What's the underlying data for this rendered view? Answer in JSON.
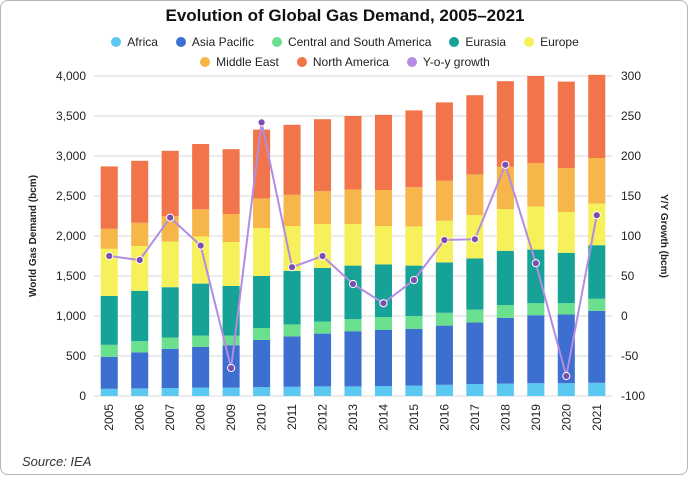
{
  "source": "Source: IEA",
  "chart_data": {
    "type": "bar",
    "stacked": true,
    "title": "Evolution of Global Gas Demand, 2005–2021",
    "xlabel": "",
    "ylabel": "World Gas Demand (bcm)",
    "y2label": "Y/Y Growth (bcm)",
    "ylim": [
      0,
      4000
    ],
    "y2lim": [
      -100,
      300
    ],
    "yticks": [
      "0",
      "500",
      "1,000",
      "1,500",
      "2,000",
      "2,500",
      "3,000",
      "3,500",
      "4,000"
    ],
    "y2ticks": [
      "-100",
      "-50",
      "0",
      "50",
      "100",
      "150",
      "200",
      "250",
      "300"
    ],
    "grid": true,
    "legend": [
      {
        "name": "Africa",
        "color": "#5ac8f0"
      },
      {
        "name": "Asia Pacific",
        "color": "#3d6fd0"
      },
      {
        "name": "Central and South America",
        "color": "#6ae08e"
      },
      {
        "name": "Eurasia",
        "color": "#16a297"
      },
      {
        "name": "Europe",
        "color": "#f6f05a"
      },
      {
        "name": "Middle East",
        "color": "#f6b64a"
      },
      {
        "name": "North America",
        "color": "#f2744a"
      },
      {
        "name": "Y-o-y growth",
        "color": "#b48ce2"
      }
    ],
    "categories": [
      "2005",
      "2006",
      "2007",
      "2008",
      "2009",
      "2010",
      "2011",
      "2012",
      "2013",
      "2014",
      "2015",
      "2016",
      "2017",
      "2018",
      "2019",
      "2020",
      "2021"
    ],
    "series": [
      {
        "name": "Africa",
        "color": "#5ac8f0",
        "values": [
          90,
          95,
          100,
          105,
          105,
          110,
          115,
          120,
          120,
          125,
          130,
          140,
          150,
          155,
          160,
          160,
          165
        ]
      },
      {
        "name": "Asia Pacific",
        "color": "#3d6fd0",
        "values": [
          400,
          450,
          490,
          510,
          530,
          590,
          630,
          660,
          690,
          700,
          710,
          740,
          770,
          820,
          850,
          860,
          900
        ]
      },
      {
        "name": "Central and South America",
        "color": "#6ae08e",
        "values": [
          150,
          140,
          140,
          140,
          120,
          150,
          150,
          150,
          150,
          160,
          160,
          160,
          160,
          160,
          150,
          140,
          150
        ]
      },
      {
        "name": "Eurasia",
        "color": "#16a297",
        "values": [
          610,
          630,
          630,
          650,
          620,
          650,
          670,
          670,
          670,
          660,
          630,
          630,
          640,
          680,
          670,
          630,
          670
        ]
      },
      {
        "name": "Europe",
        "color": "#f6f05a",
        "values": [
          590,
          560,
          570,
          590,
          550,
          600,
          560,
          550,
          520,
          480,
          490,
          520,
          540,
          520,
          540,
          510,
          520
        ]
      },
      {
        "name": "Middle East",
        "color": "#f6b64a",
        "values": [
          250,
          290,
          320,
          340,
          350,
          370,
          390,
          410,
          430,
          450,
          490,
          500,
          510,
          530,
          540,
          550,
          570
        ]
      },
      {
        "name": "North America",
        "color": "#f2744a",
        "values": [
          780,
          775,
          815,
          815,
          810,
          860,
          875,
          900,
          920,
          940,
          960,
          980,
          990,
          1070,
          1090,
          1080,
          1040
        ]
      }
    ],
    "line_series": {
      "name": "Y-o-y growth",
      "color": "#b48ce2",
      "axis": "right",
      "values": [
        75,
        70,
        123,
        88,
        -65,
        242,
        61,
        75,
        40,
        16,
        45,
        95,
        96,
        189,
        66,
        -75,
        126
      ]
    }
  }
}
